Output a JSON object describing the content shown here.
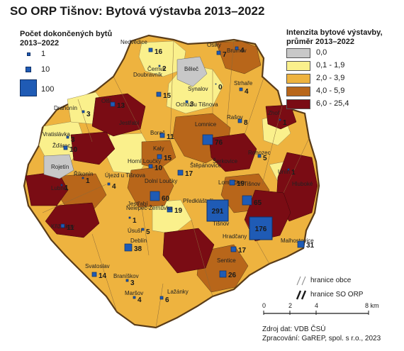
{
  "title": "SO ORP Tišnov: Bytová výstavba 2013–2022",
  "symbol_legend": {
    "title_line1": "Počet dokončených bytů",
    "title_line2": "2013–2022",
    "items": [
      {
        "value": "1",
        "color": "#1f5bb5"
      },
      {
        "value": "10",
        "color": "#1f5bb5"
      },
      {
        "value": "100",
        "color": "#1f5bb5"
      }
    ]
  },
  "class_legend": {
    "title_line1": "Intenzita bytové výstavby,",
    "title_line2": "průměr 2013–2022",
    "classes": [
      {
        "label": "0,0",
        "color": "#c8c8c8"
      },
      {
        "label": "0,1 - 1,9",
        "color": "#faf08c"
      },
      {
        "label": "2,0 - 3,9",
        "color": "#eeb33f"
      },
      {
        "label": "4,0 - 5,9",
        "color": "#b8661a"
      },
      {
        "label": "6,0 - 25,4",
        "color": "#7a0c14"
      }
    ]
  },
  "boundary_legend": {
    "municipality": "hranice obce",
    "orp": "hranice SO ORP"
  },
  "scale": {
    "ticks": [
      "0",
      "2",
      "4",
      "8 km"
    ]
  },
  "credits": {
    "source": "Zdroj dat: VDB ČSÚ",
    "author": "Zpracování: GaREP, spol. s r.o., 2023"
  },
  "municipalities": [
    {
      "name": "Nedvědice",
      "units": "16",
      "cls": 2
    },
    {
      "name": "Černvír",
      "units": "2",
      "cls": 1
    },
    {
      "name": "Běleč",
      "units": "",
      "cls": 0
    },
    {
      "name": "Osiky",
      "units": "7",
      "cls": 3
    },
    {
      "name": "Brumov",
      "units": "4",
      "cls": 2
    },
    {
      "name": "Synalov",
      "units": "0",
      "cls": 1
    },
    {
      "name": "Strhaře",
      "units": "4",
      "cls": 2
    },
    {
      "name": "Doubravník",
      "units": "15",
      "cls": 2
    },
    {
      "name": "Ochoz u Tišnova",
      "units": "3",
      "cls": 2
    },
    {
      "name": "Drahonín",
      "units": "3",
      "cls": 1
    },
    {
      "name": "Olší",
      "units": "13",
      "cls": 4
    },
    {
      "name": "Borač",
      "units": "11",
      "cls": 2
    },
    {
      "name": "Lomnice",
      "units": "76",
      "cls": 3
    },
    {
      "name": "Rašov",
      "units": "8",
      "cls": 2
    },
    {
      "name": "Zhoř",
      "units": "1",
      "cls": 1
    },
    {
      "name": "Vratislávka",
      "units": "3",
      "cls": 1
    },
    {
      "name": "Žďárec",
      "units": "10",
      "cls": 2
    },
    {
      "name": "Rojetín",
      "units": "",
      "cls": 0
    },
    {
      "name": "Horní Loučky",
      "units": "10",
      "cls": 2
    },
    {
      "name": "Kaly",
      "units": "15",
      "cls": 3
    },
    {
      "name": "Štěpánovice",
      "units": "17",
      "cls": 2
    },
    {
      "name": "Rohozec",
      "units": "5",
      "cls": 2
    },
    {
      "name": "Unín",
      "units": "1",
      "cls": 1
    },
    {
      "name": "Říkonín",
      "units": "1",
      "cls": 1
    },
    {
      "name": "Újezd u Tišnova",
      "units": "4",
      "cls": 2
    },
    {
      "name": "Lubné",
      "units": "1",
      "cls": 1
    },
    {
      "name": "Dolní Loučky",
      "units": "60",
      "cls": 3
    },
    {
      "name": "Lomnička",
      "units": "19",
      "cls": 2
    },
    {
      "name": "Tišnov",
      "units": "65",
      "cls": 3
    },
    {
      "name": "Předklášteří",
      "units": "19",
      "cls": 2
    },
    {
      "name": "Nelepeč-Žernůvka",
      "units": "1",
      "cls": 1
    },
    {
      "name": "Úsuší",
      "units": "5",
      "cls": 2
    },
    {
      "name": "Křižínkov",
      "units": "11",
      "cls": 3
    },
    {
      "name": "Deblín",
      "units": "38",
      "cls": 2
    },
    {
      "name": "Hradčany",
      "units": "17",
      "cls": 2
    },
    {
      "name": "Malhostovice",
      "units": "31",
      "cls": 2
    },
    {
      "name": "Svatoslav",
      "units": "14",
      "cls": 2
    },
    {
      "name": "Sentice",
      "units": "26",
      "cls": 3
    },
    {
      "name": "Braníškov",
      "units": "3",
      "cls": 2
    },
    {
      "name": "Maršov",
      "units": "4",
      "cls": 2
    },
    {
      "name": "Lažánky",
      "units": "6",
      "cls": 2
    }
  ],
  "big_labels": [
    "291",
    "176"
  ],
  "extra_labels": [
    "Jestřabí",
    "Jestřabí",
    "Tišnov",
    "Šerkovice",
    "Hluboké"
  ]
}
